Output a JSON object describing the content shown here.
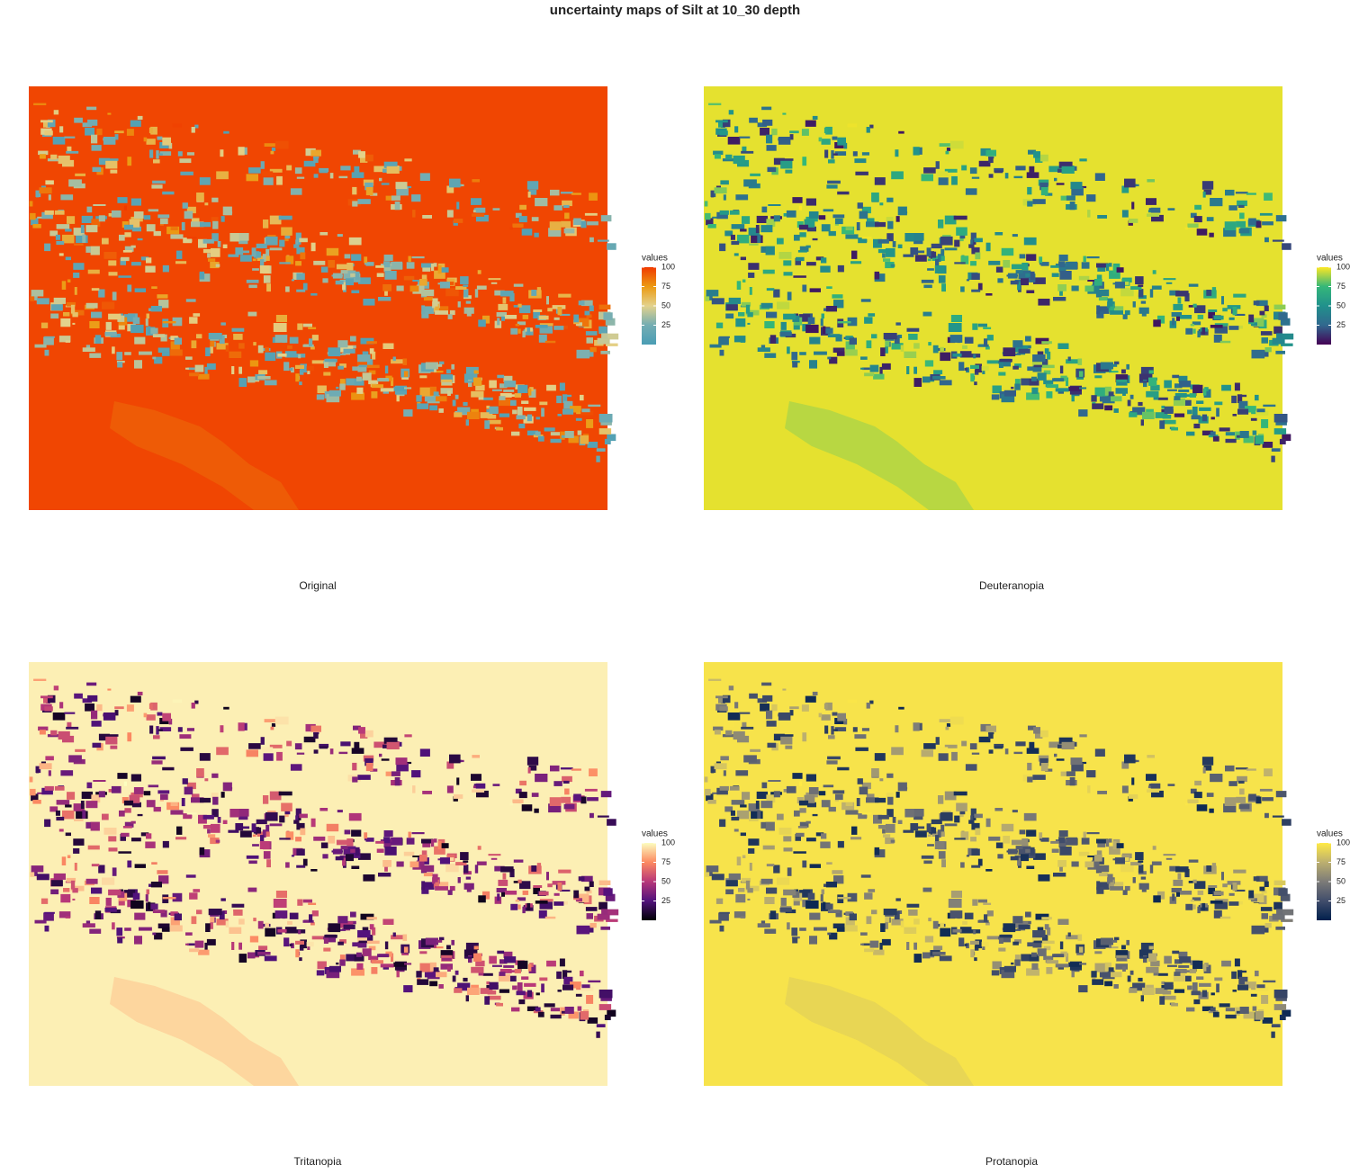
{
  "title": "uncertainty maps of Silt at 10_30 depth",
  "panels": [
    {
      "caption": "Original",
      "legend": {
        "title": "values",
        "lim": [
          0,
          100
        ],
        "ticks": [
          25,
          50,
          75,
          100
        ],
        "colors": [
          "#4a9db4",
          "#73adb3",
          "#e3d28c",
          "#ec9a12",
          "#f03a00"
        ]
      }
    },
    {
      "caption": "Deuteranopia",
      "legend": {
        "title": "values",
        "lim": [
          0,
          100
        ],
        "ticks": [
          25,
          50,
          75,
          100
        ],
        "colors": [
          "#440154",
          "#31688e",
          "#21918c",
          "#35b779",
          "#fde725"
        ]
      }
    },
    {
      "caption": "Tritanopia",
      "legend": {
        "title": "values",
        "lim": [
          0,
          100
        ],
        "ticks": [
          25,
          50,
          75,
          100
        ],
        "colors": [
          "#000004",
          "#51127c",
          "#b73779",
          "#fc8961",
          "#fcfdbf"
        ]
      }
    },
    {
      "caption": "Protanopia",
      "legend": {
        "title": "values",
        "lim": [
          0,
          100
        ],
        "ticks": [
          25,
          50,
          75,
          100
        ],
        "colors": [
          "#00204d",
          "#414d6b",
          "#7c7b78",
          "#bcaf6f",
          "#ffea46"
        ]
      }
    }
  ]
}
